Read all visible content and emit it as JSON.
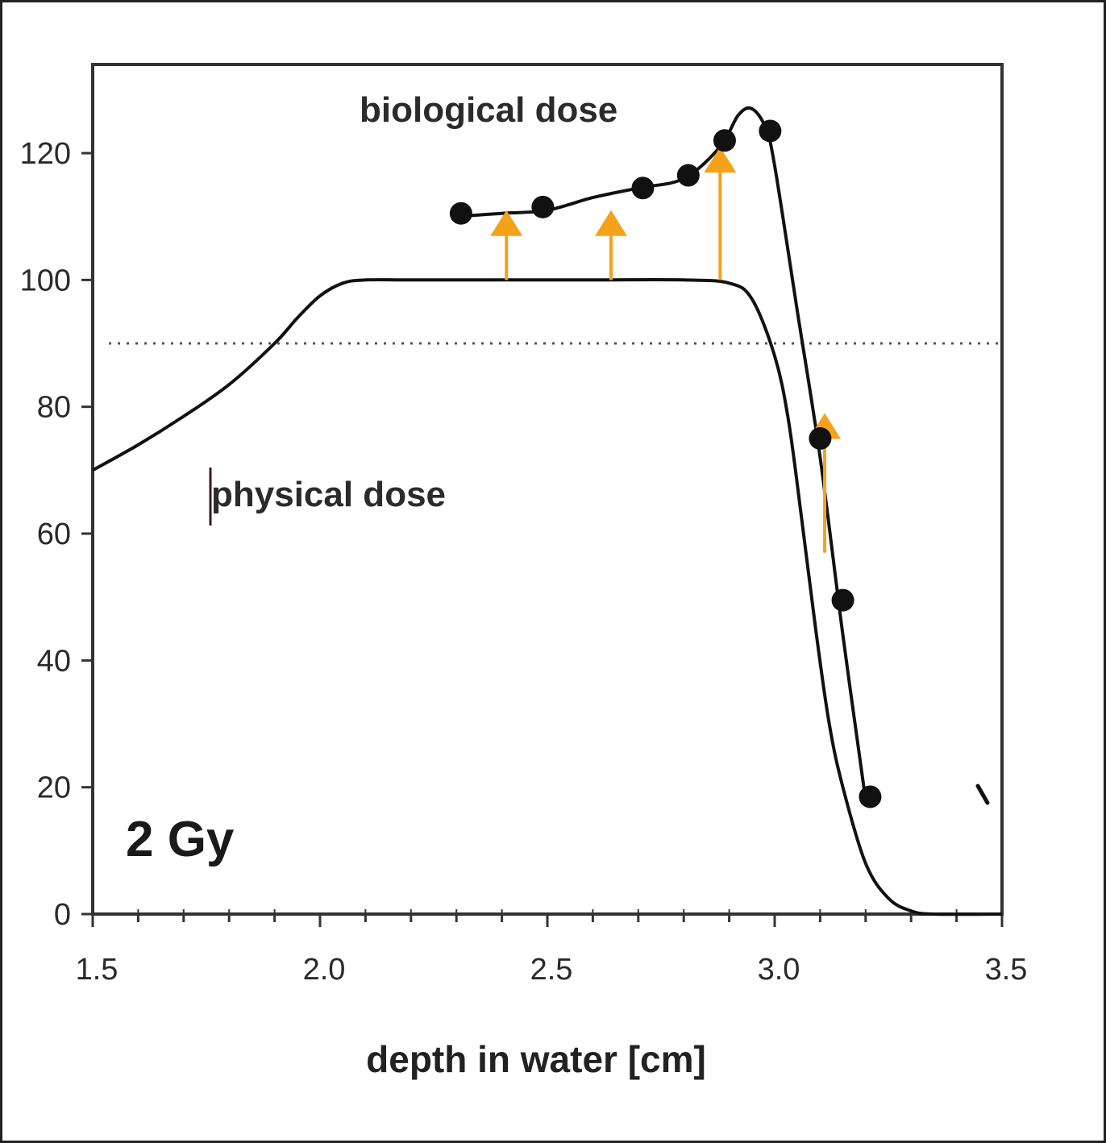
{
  "chart_data": {
    "type": "line",
    "xlabel": "depth in water [cm]",
    "ylabel": "",
    "xlim": [
      1.5,
      3.5
    ],
    "ylim": [
      0,
      140
    ],
    "x_ticks": [
      "1.5",
      "2.0",
      "2.5",
      "3.0",
      "3.5"
    ],
    "y_ticks": [
      "0",
      "20",
      "40",
      "60",
      "80",
      "100",
      "120"
    ],
    "reference_line": {
      "y": 90,
      "style": "dotted"
    },
    "annotations": {
      "dose_label": "2 Gy",
      "physical_label": "physical dose",
      "biological_label": "biological dose"
    },
    "series": [
      {
        "name": "physical dose",
        "style": "line",
        "x": [
          1.5,
          1.6,
          1.7,
          1.8,
          1.9,
          1.95,
          2.0,
          2.05,
          2.1,
          2.2,
          2.4,
          2.6,
          2.8,
          2.9,
          2.95,
          3.0,
          3.03,
          3.06,
          3.09,
          3.12,
          3.15,
          3.2,
          3.25,
          3.3,
          3.35,
          3.5
        ],
        "y": [
          70,
          74,
          78.5,
          83.5,
          90,
          94,
          97.5,
          99.5,
          100,
          100,
          100,
          100,
          100,
          99.5,
          97,
          88,
          78,
          62,
          45,
          30,
          20,
          8,
          2.5,
          0.5,
          0,
          0
        ]
      },
      {
        "name": "biological dose",
        "style": "line",
        "x": [
          2.3,
          2.4,
          2.5,
          2.6,
          2.7,
          2.8,
          2.88,
          2.92,
          2.95,
          2.98,
          3.0,
          3.05,
          3.1,
          3.15,
          3.2
        ],
        "y": [
          110,
          110.5,
          111,
          113,
          114.5,
          116,
          121,
          126,
          127,
          124,
          118,
          95,
          72,
          44,
          18
        ]
      },
      {
        "name": "biological dose points",
        "style": "markers",
        "x": [
          2.31,
          2.49,
          2.71,
          2.81,
          2.89,
          2.99,
          3.1,
          3.15,
          3.21
        ],
        "y": [
          110.5,
          111.5,
          114.5,
          116.5,
          122,
          123.5,
          75,
          49.5,
          18.5
        ]
      }
    ],
    "arrows": [
      {
        "x": 2.41,
        "from": 100,
        "to": 111
      },
      {
        "x": 2.64,
        "from": 100,
        "to": 111
      },
      {
        "x": 2.88,
        "from": 100,
        "to": 121
      },
      {
        "x": 3.11,
        "from": 57,
        "to": 79
      }
    ],
    "colors": {
      "curve": "#111111",
      "marker": "#111111",
      "arrow": "#f5a21b",
      "reference": "#555555",
      "axis": "#333333"
    }
  }
}
